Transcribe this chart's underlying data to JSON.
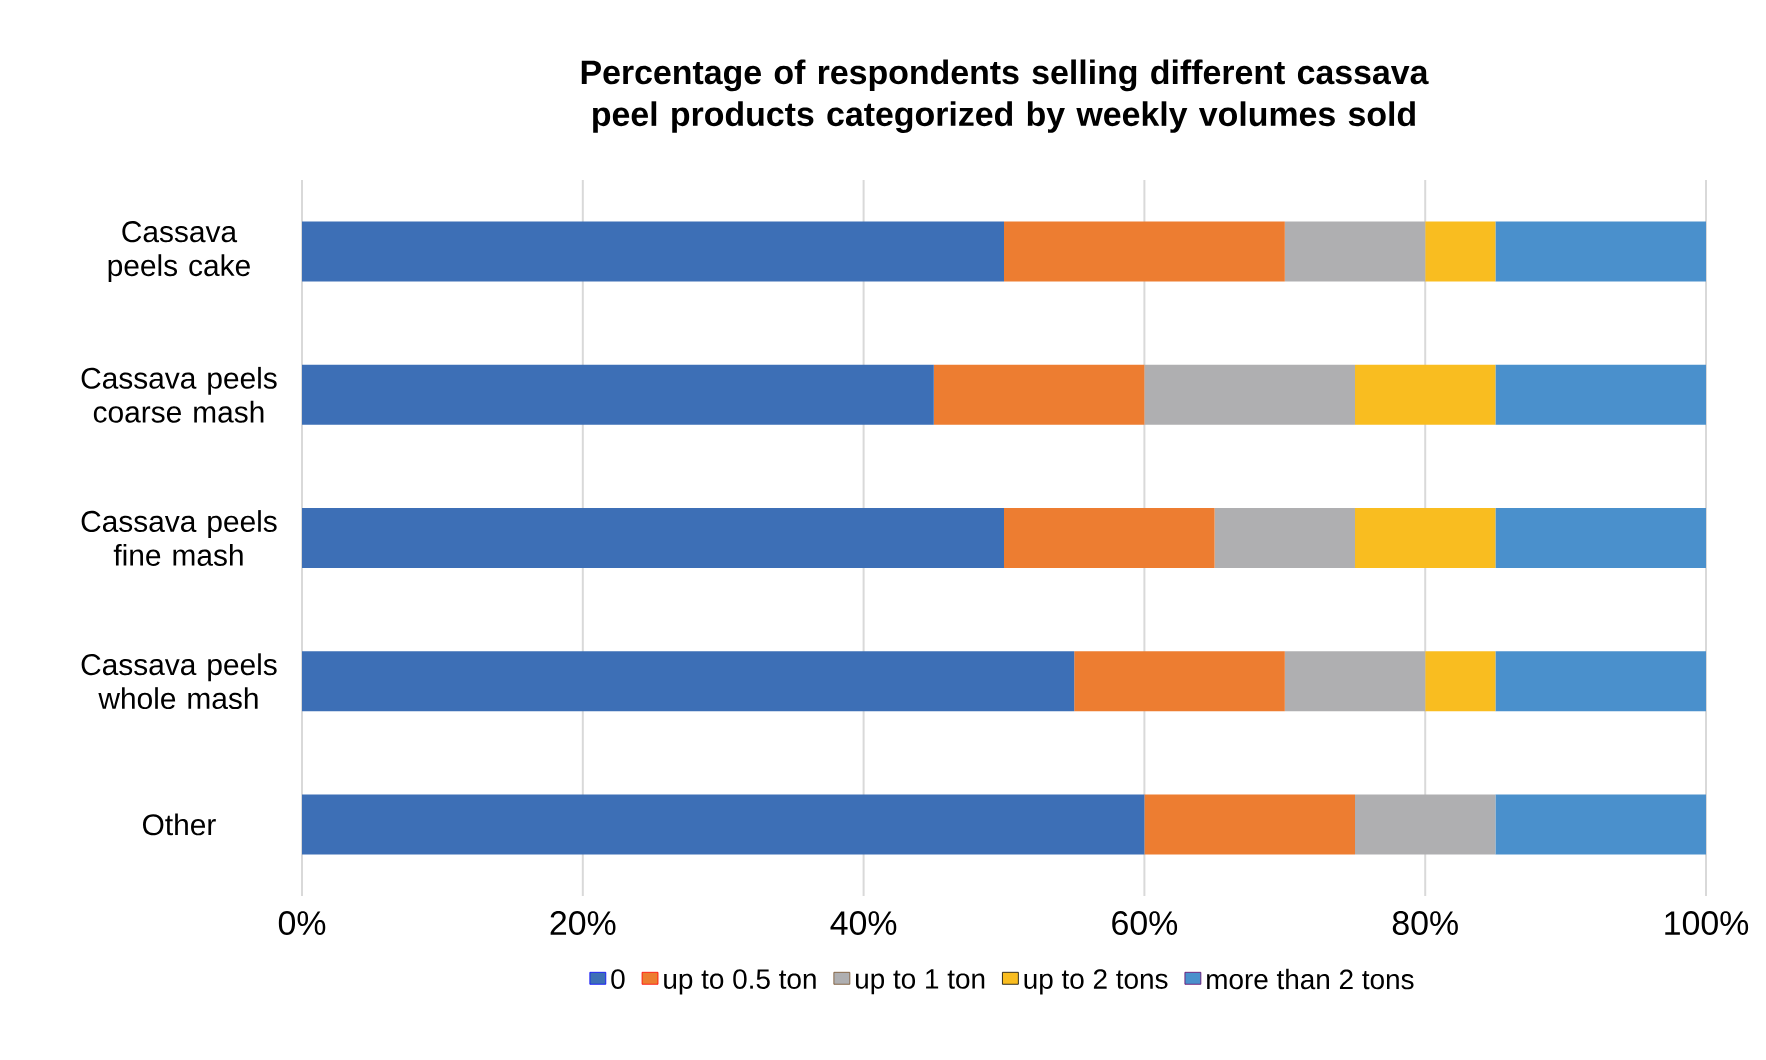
{
  "chart_data": {
    "type": "bar",
    "orientation": "horizontal",
    "stacked": true,
    "title": "Percentage of respondents selling different cassava peel products categorized by weekly volumes sold",
    "categories": [
      "Cassava peels cake",
      "Cassava peels coarse mash",
      "Cassava peels fine mash",
      "Cassava peels whole mash",
      "Other"
    ],
    "series": [
      {
        "name": "0",
        "color": "#3d6fb6",
        "values": [
          50,
          45,
          50,
          55,
          60
        ]
      },
      {
        "name": "up to 0.5 ton",
        "color": "#ed7d31",
        "values": [
          20,
          15,
          15,
          15,
          15
        ]
      },
      {
        "name": "up to 1 ton",
        "color": "#afafb1",
        "values": [
          10,
          15,
          10,
          10,
          10
        ]
      },
      {
        "name": "up to 2 tons",
        "color": "#f9bd20",
        "values": [
          5,
          10,
          10,
          5,
          0
        ]
      },
      {
        "name": "more than 2 tons",
        "color": "#4a90cc",
        "values": [
          15,
          15,
          15,
          15,
          15
        ]
      }
    ],
    "xlim": [
      0,
      100
    ],
    "xticks": [
      {
        "value": 0,
        "label": "0%"
      },
      {
        "value": 20,
        "label": "20%"
      },
      {
        "value": 40,
        "label": "40%"
      },
      {
        "value": 60,
        "label": "60%"
      },
      {
        "value": 80,
        "label": "80%"
      },
      {
        "value": 100,
        "label": "100%"
      }
    ],
    "grid": "x",
    "legend": "bottom"
  }
}
